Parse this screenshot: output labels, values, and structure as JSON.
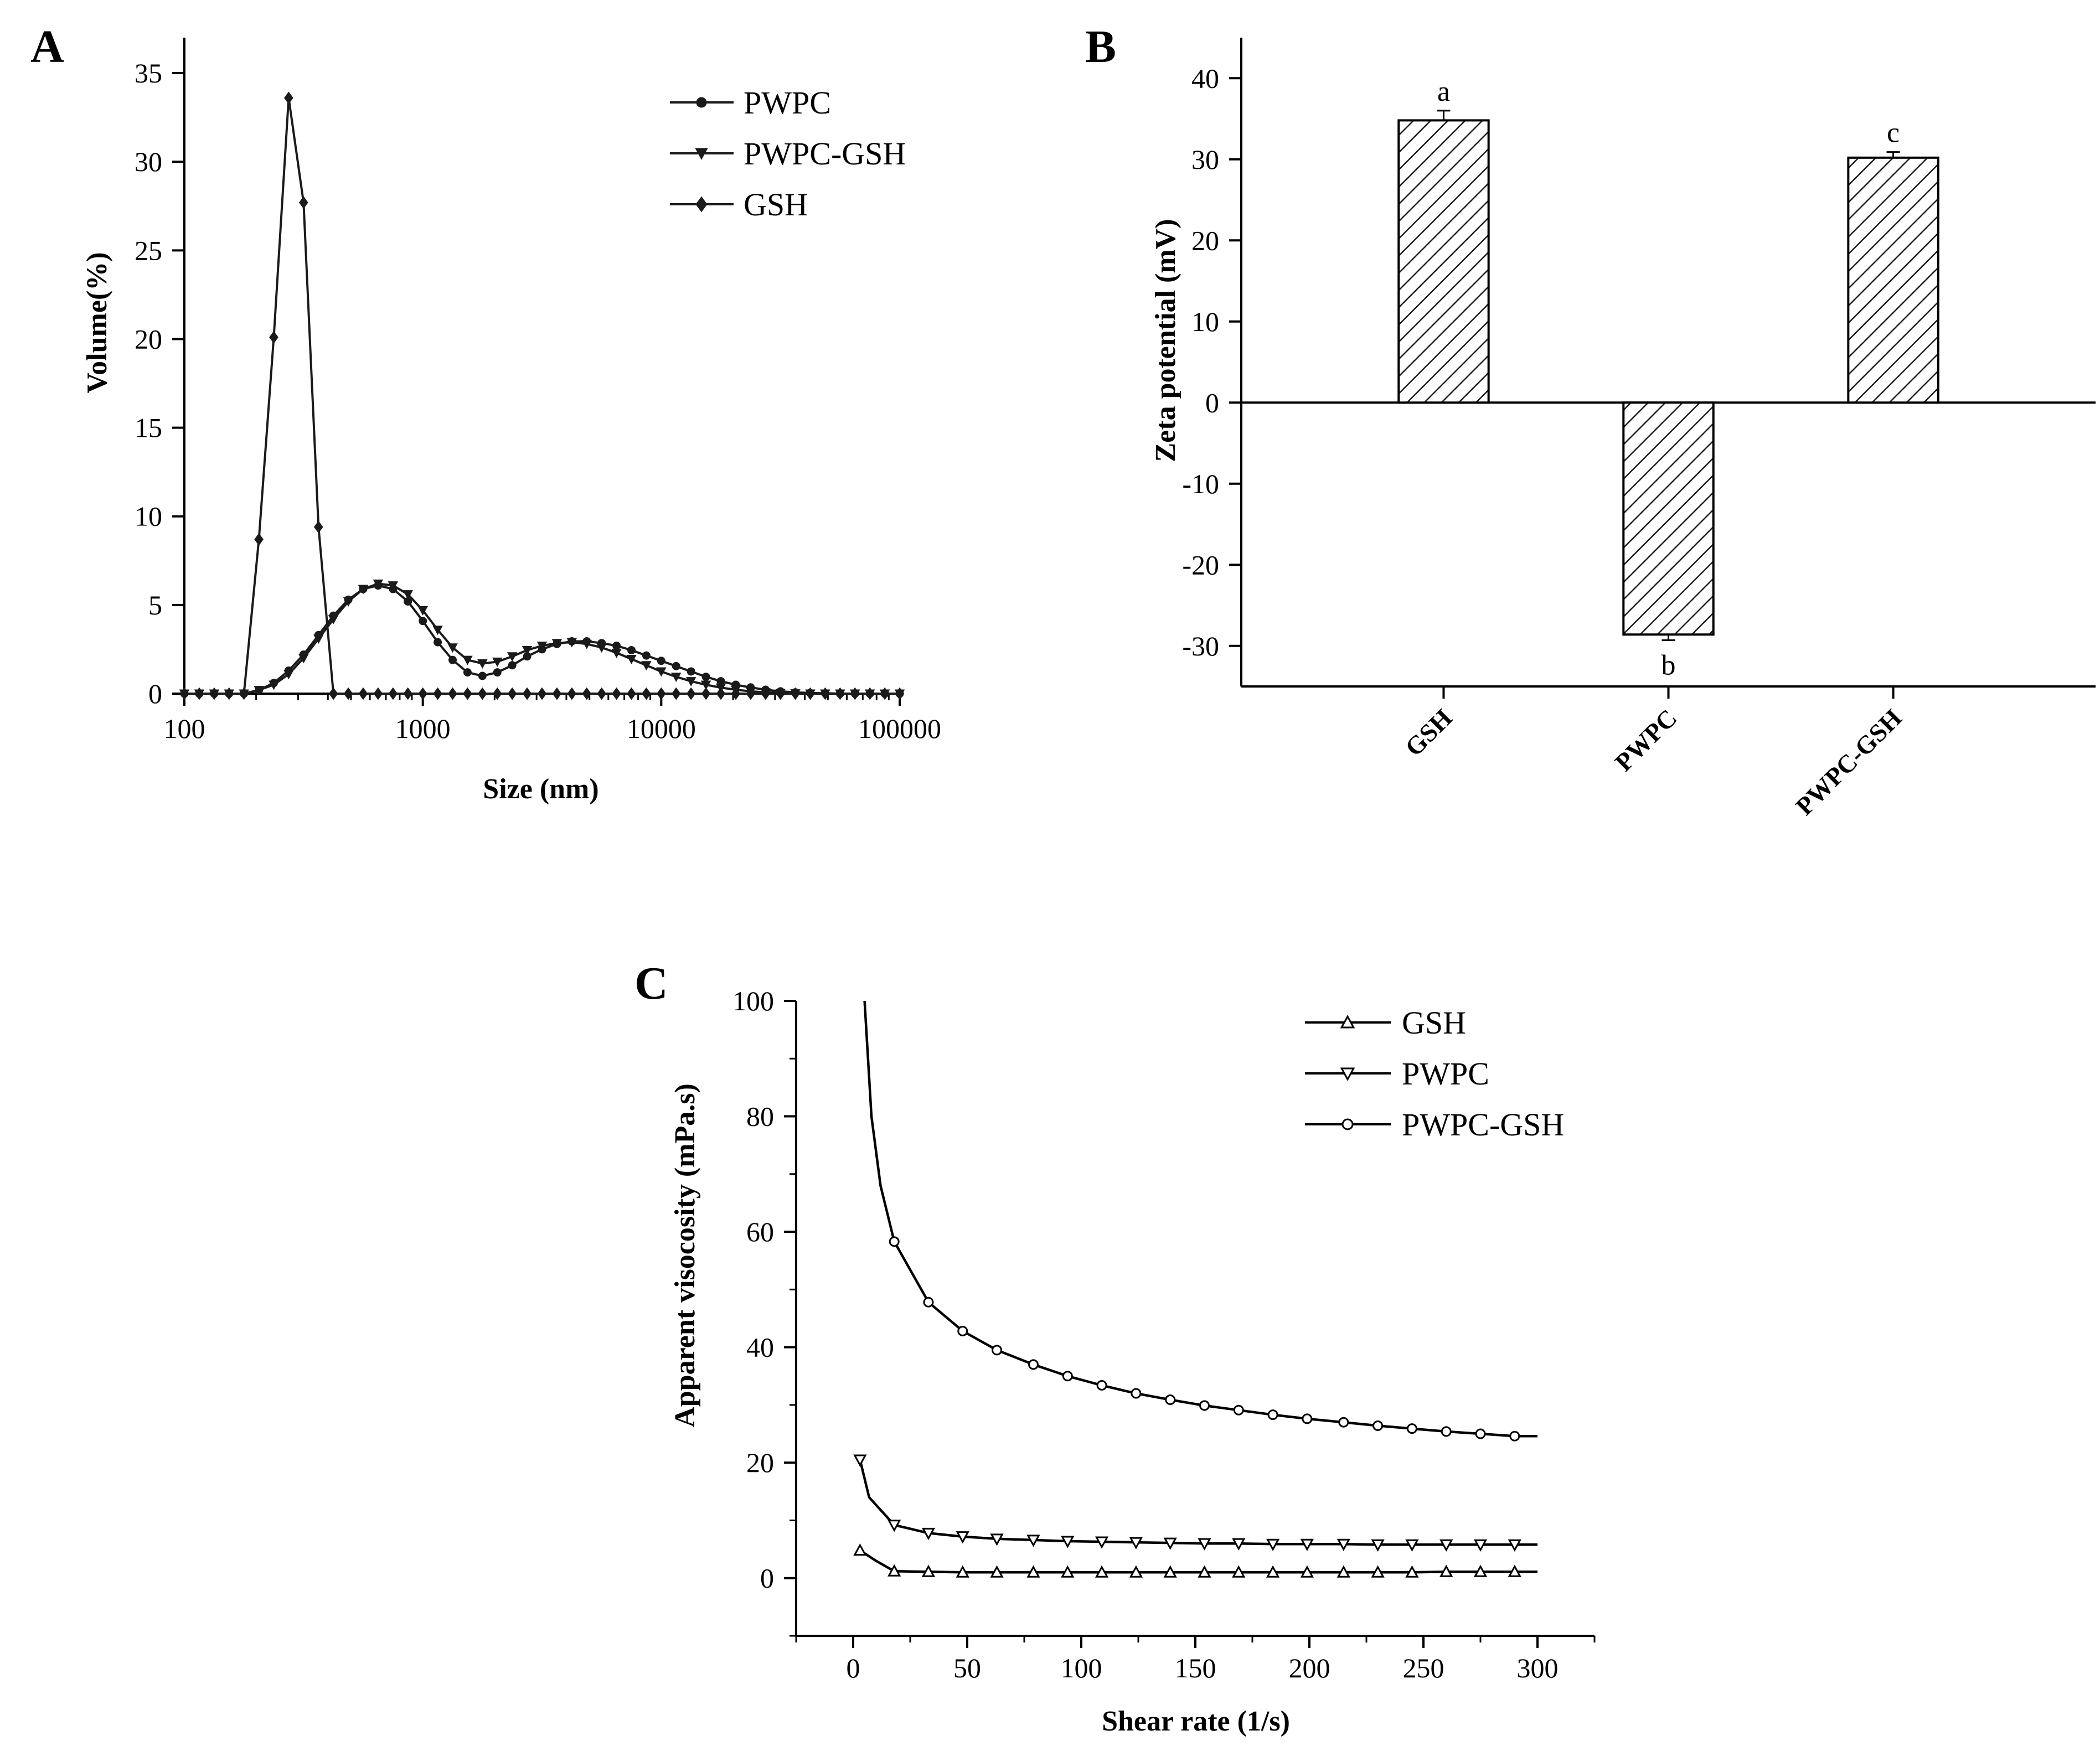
{
  "figure": {
    "colors": {
      "axis": "#000000",
      "series": "#1a1a1a",
      "panel_c_series": "#000000",
      "background": "#ffffff"
    },
    "panels": {
      "A": {
        "label": "A"
      },
      "B": {
        "label": "B"
      },
      "C": {
        "label": "C"
      }
    }
  },
  "chart_data": [
    {
      "panel": "A",
      "type": "line",
      "xscale": "log",
      "xlabel": "Size (nm)",
      "ylabel": "Volume(%)",
      "xlim": [
        100,
        100000
      ],
      "ylim": [
        0,
        37
      ],
      "xticks": [
        100,
        1000,
        10000,
        100000
      ],
      "xtick_labels": [
        "100",
        "1000",
        "10000",
        "100000"
      ],
      "yticks": [
        0,
        5,
        10,
        15,
        20,
        25,
        30,
        35
      ],
      "ytick_labels": [
        "0",
        "5",
        "10",
        "15",
        "20",
        "25",
        "30",
        "35"
      ],
      "legend_position": "top-right",
      "series": [
        {
          "name": "PWPC",
          "marker": "circle",
          "x": [
            100,
            115.5,
            133.4,
            154,
            177.8,
            205.4,
            237.1,
            273.8,
            316.2,
            365.2,
            421.7,
            487,
            562.3,
            649.4,
            749.9,
            866,
            1000,
            1154.8,
            1333.5,
            1539.9,
            1778.3,
            2053.5,
            2371.4,
            2738.4,
            3162.3,
            3651.7,
            4217,
            4869.7,
            5623.4,
            6493.8,
            7498.9,
            8659.6,
            10000,
            11547.8,
            13335.2,
            15399.3,
            17782.8,
            20535.3,
            23713.7,
            27384.2,
            31622.8,
            36517.4,
            42169.7,
            48696.8,
            56234.1,
            64938.2,
            74989.4,
            86596.4,
            100000
          ],
          "y": [
            0,
            0,
            0,
            0,
            0,
            0.2,
            0.6,
            1.3,
            2.2,
            3.3,
            4.4,
            5.3,
            5.9,
            6.1,
            5.9,
            5.2,
            4.1,
            2.9,
            1.9,
            1.2,
            1.0,
            1.2,
            1.6,
            2.1,
            2.5,
            2.8,
            2.95,
            2.95,
            2.85,
            2.7,
            2.45,
            2.15,
            1.85,
            1.55,
            1.25,
            0.95,
            0.7,
            0.5,
            0.35,
            0.22,
            0.13,
            0.07,
            0.04,
            0.02,
            0,
            0,
            0,
            0,
            0
          ]
        },
        {
          "name": "PWPC-GSH",
          "marker": "triangle-down",
          "x": [
            100,
            115.5,
            133.4,
            154,
            177.8,
            205.4,
            237.1,
            273.8,
            316.2,
            365.2,
            421.7,
            487,
            562.3,
            649.4,
            749.9,
            866,
            1000,
            1154.8,
            1333.5,
            1539.9,
            1778.3,
            2053.5,
            2371.4,
            2738.4,
            3162.3,
            3651.7,
            4217,
            4869.7,
            5623.4,
            6493.8,
            7498.9,
            8659.6,
            10000,
            11547.8,
            13335.2,
            15399.3,
            17782.8,
            20535.3,
            23713.7,
            27384.2,
            31622.8,
            36517.4,
            42169.7,
            48696.8,
            56234.1,
            64938.2,
            74989.4,
            86596.4,
            100000
          ],
          "y": [
            0,
            0,
            0,
            0,
            0,
            0.2,
            0.5,
            1.1,
            2.0,
            3.1,
            4.2,
            5.2,
            5.9,
            6.2,
            6.1,
            5.6,
            4.7,
            3.6,
            2.6,
            1.9,
            1.7,
            1.8,
            2.1,
            2.45,
            2.7,
            2.85,
            2.9,
            2.8,
            2.6,
            2.3,
            1.95,
            1.6,
            1.25,
            0.95,
            0.7,
            0.5,
            0.34,
            0.22,
            0.13,
            0.07,
            0.03,
            0.01,
            0,
            0,
            0,
            0,
            0,
            0,
            0
          ]
        },
        {
          "name": "GSH",
          "marker": "diamond",
          "x": [
            100,
            115.5,
            133.4,
            154,
            177.8,
            205.4,
            237.1,
            273.8,
            316.2,
            365.2,
            421.7,
            487,
            562.3,
            649.4,
            749.9,
            866,
            1000,
            1154.8,
            1333.5,
            1539.9,
            1778.3,
            2053.5,
            2371.4,
            2738.4,
            3162.3,
            3651.7,
            4217,
            4869.7,
            5623.4,
            6493.8,
            7498.9,
            8659.6,
            10000,
            11547.8,
            13335.2,
            15399.3,
            17782.8,
            20535.3,
            23713.7,
            27384.2,
            31622.8,
            36517.4,
            42169.7,
            48696.8,
            56234.1,
            64938.2,
            74989.4,
            86596.4,
            100000
          ],
          "y": [
            0,
            0,
            0,
            0,
            0,
            8.7,
            20.1,
            33.6,
            27.7,
            9.4,
            0,
            0,
            0,
            0,
            0,
            0,
            0,
            0,
            0,
            0,
            0,
            0,
            0,
            0,
            0,
            0,
            0,
            0,
            0,
            0,
            0,
            0,
            0,
            0,
            0,
            0,
            0,
            0,
            0,
            0,
            0,
            0,
            0,
            0,
            0,
            0,
            0,
            0,
            0
          ]
        }
      ]
    },
    {
      "panel": "B",
      "type": "bar",
      "bar_fill": "diagonal-hatch",
      "xlabel": "",
      "ylabel": "Zeta potential (mV)",
      "ylim": [
        -35,
        45
      ],
      "yticks": [
        -30,
        -20,
        -10,
        0,
        10,
        20,
        30,
        40
      ],
      "ytick_labels": [
        "-30",
        "-20",
        "-10",
        "0",
        "10",
        "20",
        "30",
        "40"
      ],
      "categories": [
        "GSH",
        "PWPC",
        "PWPC-GSH"
      ],
      "values": [
        34.8,
        -28.6,
        30.2
      ],
      "errors": [
        1.2,
        0.7,
        0.7
      ],
      "annotations": [
        "a",
        "b",
        "c"
      ]
    },
    {
      "panel": "C",
      "type": "line",
      "xlabel": "Shear rate (1/s)",
      "ylabel": "Apparent visocosity (mPa.s)",
      "xlim": [
        -25,
        325
      ],
      "ylim": [
        -10,
        100
      ],
      "xticks": [
        0,
        50,
        100,
        150,
        200,
        250,
        300
      ],
      "xtick_labels": [
        "0",
        "50",
        "100",
        "150",
        "200",
        "250",
        "300"
      ],
      "yticks": [
        0,
        20,
        40,
        60,
        80,
        100
      ],
      "ytick_labels": [
        "0",
        "20",
        "40",
        "60",
        "80",
        "100"
      ],
      "legend_position": "top-right",
      "series": [
        {
          "name": "GSH",
          "marker": "triangle-up-open",
          "x": [
            3,
            10,
            18,
            33,
            48,
            63,
            79,
            94,
            109,
            124,
            139,
            154,
            169,
            184,
            199,
            215,
            230,
            245,
            260,
            275,
            290,
            300
          ],
          "y": [
            4.8,
            3.0,
            1.2,
            1.1,
            1.0,
            1.0,
            1.0,
            1.0,
            1.0,
            1.0,
            1.0,
            1.0,
            1.0,
            1.0,
            1.0,
            1.0,
            1.0,
            1.0,
            1.1,
            1.1,
            1.1,
            1.1
          ]
        },
        {
          "name": "PWPC",
          "marker": "triangle-down-open",
          "x": [
            3,
            7,
            18,
            33,
            48,
            63,
            79,
            94,
            109,
            124,
            139,
            154,
            169,
            184,
            199,
            215,
            230,
            245,
            260,
            275,
            290,
            300
          ],
          "y": [
            20.5,
            14.0,
            9.2,
            7.8,
            7.2,
            6.8,
            6.6,
            6.4,
            6.3,
            6.2,
            6.1,
            6.0,
            6.0,
            5.9,
            5.9,
            5.9,
            5.8,
            5.8,
            5.8,
            5.8,
            5.8,
            5.8
          ]
        },
        {
          "name": "PWPC-GSH",
          "marker": "circle-open",
          "x": [
            5,
            8,
            12,
            18,
            33,
            48,
            63,
            79,
            94,
            109,
            124,
            139,
            154,
            169,
            184,
            199,
            215,
            230,
            245,
            260,
            275,
            290,
            300
          ],
          "y": [
            100,
            80,
            68,
            58.3,
            47.8,
            42.8,
            39.5,
            37.0,
            35.0,
            33.4,
            32.0,
            30.9,
            29.9,
            29.1,
            28.3,
            27.6,
            27.0,
            26.4,
            25.9,
            25.4,
            25.0,
            24.6,
            24.6
          ]
        }
      ]
    }
  ]
}
